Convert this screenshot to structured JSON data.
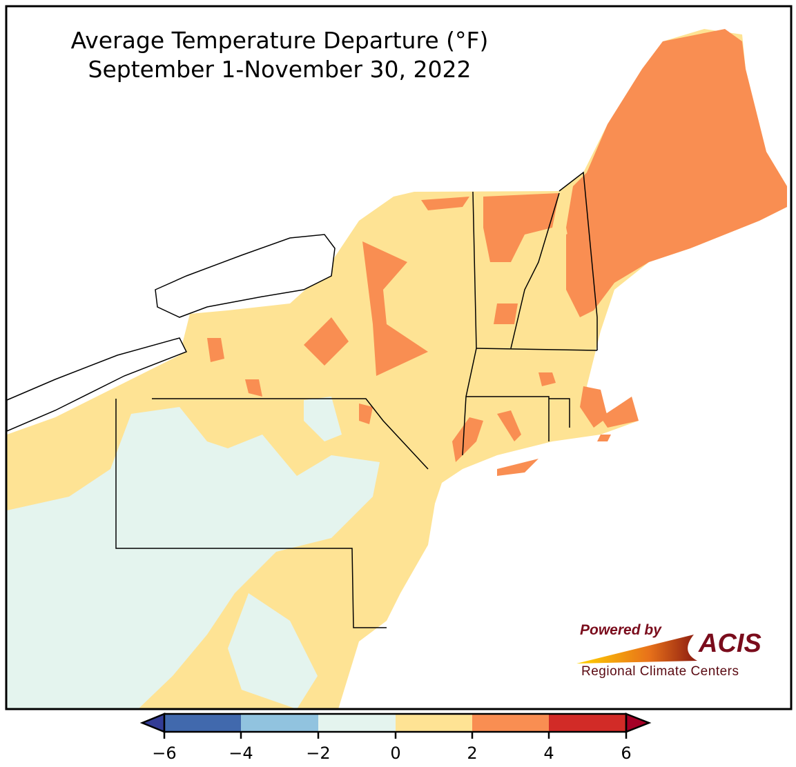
{
  "title": {
    "line1": "Average Temperature Departure (°F)",
    "line2": "September 1-November 30, 2022"
  },
  "colorbar": {
    "ticks": [
      "−6",
      "−4",
      "−2",
      "0",
      "2",
      "4",
      "6"
    ],
    "bins": [
      {
        "range": [
          -6,
          -4
        ],
        "color": "#4169ad"
      },
      {
        "range": [
          -4,
          -2
        ],
        "color": "#91c3df"
      },
      {
        "range": [
          -2,
          0
        ],
        "color": "#e4f4ee"
      },
      {
        "range": [
          0,
          2
        ],
        "color": "#fee394"
      },
      {
        "range": [
          2,
          4
        ],
        "color": "#f98e52"
      },
      {
        "range": [
          4,
          6
        ],
        "color": "#d22b27"
      }
    ],
    "under_color": "#333c96",
    "over_color": "#a50026"
  },
  "logo": {
    "powered_by": "Powered by",
    "name": "ACIS",
    "subtitle": "Regional Climate Centers"
  }
}
